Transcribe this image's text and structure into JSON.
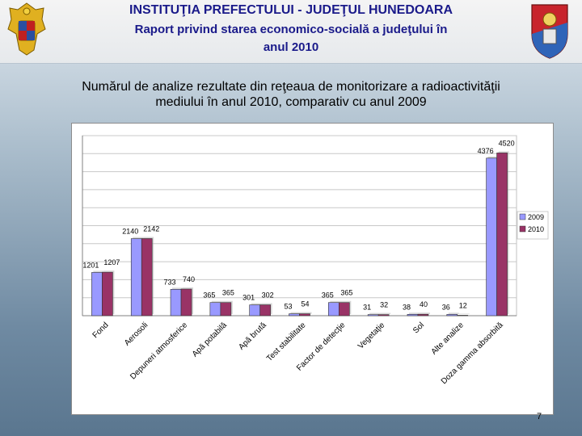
{
  "header": {
    "title": "INSTITUŢIA PREFECTULUI - JUDEŢUL HUNEDOARA",
    "subtitle_line1": "Raport privind starea economico-socială a judeţului în",
    "subtitle_line2": "anul 2010"
  },
  "slide": {
    "heading_line1": "Numărul de analize rezultate din reţeaua de monitorizare a radioactivităţii",
    "heading_line2": "mediului în anul 2010, comparativ cu anul 2009",
    "page_number": "7"
  },
  "logos": {
    "left": "coat-of-arms-romania-icon",
    "right": "coat-of-arms-hunedoara-icon"
  },
  "chart_data": {
    "type": "bar",
    "categories": [
      "Fond",
      "Aerosoli",
      "Depuneri atmosferice",
      "Apă potabilă",
      "Apă brută",
      "Test stabilitate",
      "Factor de detecţie",
      "Vegetaţie",
      "Sol",
      "Alte analize",
      "Doza gamma absorbită"
    ],
    "series": [
      {
        "name": "2009",
        "values": [
          1201,
          2140,
          733,
          365,
          301,
          53,
          365,
          31,
          38,
          36,
          4376
        ],
        "labels": [
          "1201",
          "2140",
          "733",
          "365",
          "301",
          "53",
          "365",
          "31",
          "38",
          "36",
          "4376"
        ],
        "color": "#9999ff"
      },
      {
        "name": "2010",
        "values": [
          1207,
          2142,
          740,
          365,
          302,
          54,
          365,
          32,
          40,
          12,
          4520
        ],
        "labels": [
          "1207",
          "2142",
          "740",
          "365",
          "302",
          "54",
          "365",
          "32",
          "40",
          "12",
          "4520"
        ],
        "color": "#993366"
      }
    ],
    "ylim": [
      0,
      5000
    ],
    "yticks": [
      "0",
      "500",
      "1000",
      "1500",
      "2000",
      "2500",
      "3000",
      "3500",
      "4000",
      "4500",
      "5000"
    ],
    "grid": true,
    "legend_position": "right"
  }
}
